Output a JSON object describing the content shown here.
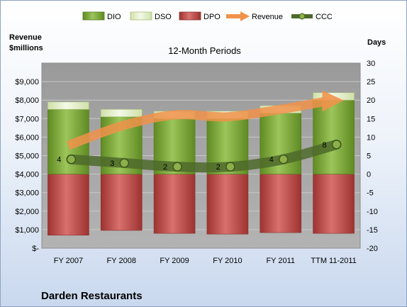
{
  "chart_data": {
    "type": "bar",
    "title": "12-Month Periods",
    "company": "Darden Restaurants",
    "left_axis": {
      "label_line1": "Revenue",
      "label_line2": "$millions",
      "ylim": [
        0,
        10000
      ],
      "ticks": [
        0,
        1000,
        2000,
        3000,
        4000,
        5000,
        6000,
        7000,
        8000,
        9000
      ],
      "tick_labels": [
        "$-",
        "$1,000",
        "$2,000",
        "$3,000",
        "$4,000",
        "$5,000",
        "$6,000",
        "$7,000",
        "$8,000",
        "$9,000"
      ]
    },
    "right_axis": {
      "label": "Days",
      "ylim": [
        -20,
        30
      ],
      "ticks": [
        -20,
        -15,
        -10,
        -5,
        0,
        5,
        10,
        15,
        20,
        25,
        30
      ],
      "tick_labels": [
        "-20",
        "-15",
        "-10",
        "-5",
        "0",
        "5",
        "10",
        "15",
        "20",
        "25",
        "30"
      ]
    },
    "categories": [
      "FY 2007",
      "FY 2008",
      "FY 2009",
      "FY 2010",
      "FY 2011",
      "TTM 11-2011"
    ],
    "series": [
      {
        "name": "DIO",
        "values": [
          17.5,
          15.5,
          15.0,
          15.0,
          16.5,
          20.0
        ]
      },
      {
        "name": "DSO",
        "values": [
          2.0,
          2.0,
          2.0,
          2.0,
          2.0,
          2.0
        ]
      },
      {
        "name": "DPO",
        "values": [
          -16.5,
          -15.2,
          -16.0,
          -16.2,
          -15.8,
          -16.0
        ]
      },
      {
        "name": "Revenue",
        "values": [
          5550,
          6600,
          7200,
          7100,
          7500,
          7950
        ]
      },
      {
        "name": "CCC",
        "values": [
          4,
          3,
          2,
          2,
          4,
          8
        ]
      }
    ],
    "ccc_labels": [
      "4",
      "3",
      "2",
      "2",
      "4",
      "8"
    ],
    "legend_position": "top",
    "grid": true,
    "colors": {
      "DIO": "#7aa63a",
      "DSO": "#eaf3d6",
      "DPO": "#c0504d",
      "Revenue": "#f0924a",
      "CCC": "#4e6a2a",
      "plot_bg": "#a6a6a6"
    }
  }
}
